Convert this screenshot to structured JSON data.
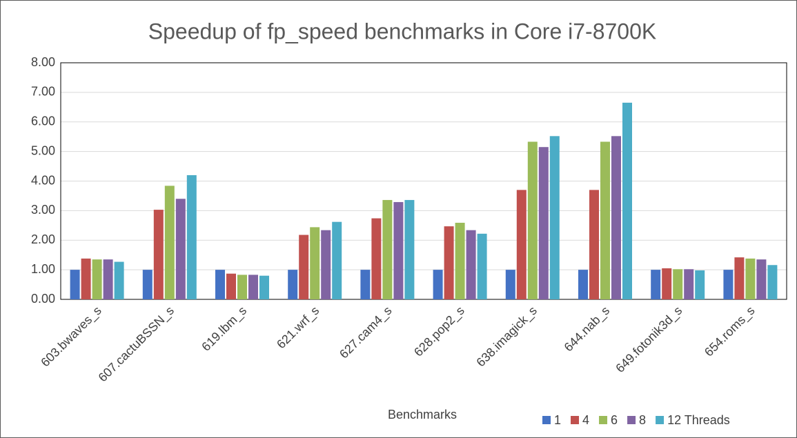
{
  "chart_data": {
    "type": "bar",
    "title": "Speedup of fp_speed benchmarks in Core i7-8700K",
    "x_label": "Benchmarks",
    "categories": [
      "603.bwaves_s",
      "607.cactuBSSN_s",
      "619.lbm_s",
      "621.wrf_s",
      "627.cam4_s",
      "628.pop2_s",
      "638.imagick_s",
      "644.nab_s",
      "649.fotonik3d_s",
      "654.roms_s"
    ],
    "series": [
      {
        "name": "1",
        "color": "#4472c4",
        "values": [
          1,
          1,
          1,
          1,
          1,
          1,
          1,
          1,
          1,
          1
        ]
      },
      {
        "name": "4",
        "color": "#c0504d",
        "values": [
          1.38,
          3.03,
          0.87,
          2.18,
          2.74,
          2.47,
          3.7,
          3.7,
          1.05,
          1.42
        ]
      },
      {
        "name": "6",
        "color": "#9bbb59",
        "values": [
          1.35,
          3.84,
          0.83,
          2.44,
          3.36,
          2.59,
          5.33,
          5.33,
          1.02,
          1.38
        ]
      },
      {
        "name": "8",
        "color": "#8064a2",
        "values": [
          1.35,
          3.4,
          0.83,
          2.34,
          3.29,
          2.34,
          5.15,
          5.52,
          1.02,
          1.35
        ]
      },
      {
        "name": "12 Threads",
        "color": "#4bacc6",
        "values": [
          1.27,
          4.2,
          0.8,
          2.62,
          3.36,
          2.22,
          5.52,
          6.65,
          0.98,
          1.16
        ]
      }
    ],
    "ylim": [
      0,
      8
    ],
    "yticks": [
      {
        "value": 0,
        "label": "0.00"
      },
      {
        "value": 1,
        "label": "1.00"
      },
      {
        "value": 2,
        "label": "2.00"
      },
      {
        "value": 3,
        "label": "3.00"
      },
      {
        "value": 4,
        "label": "4.00"
      },
      {
        "value": 5,
        "label": "5.00"
      },
      {
        "value": 6,
        "label": "6.00"
      },
      {
        "value": 7,
        "label": "7.00"
      },
      {
        "value": 8,
        "label": "8.00"
      }
    ],
    "grid": true,
    "legend": "bottom-right"
  }
}
